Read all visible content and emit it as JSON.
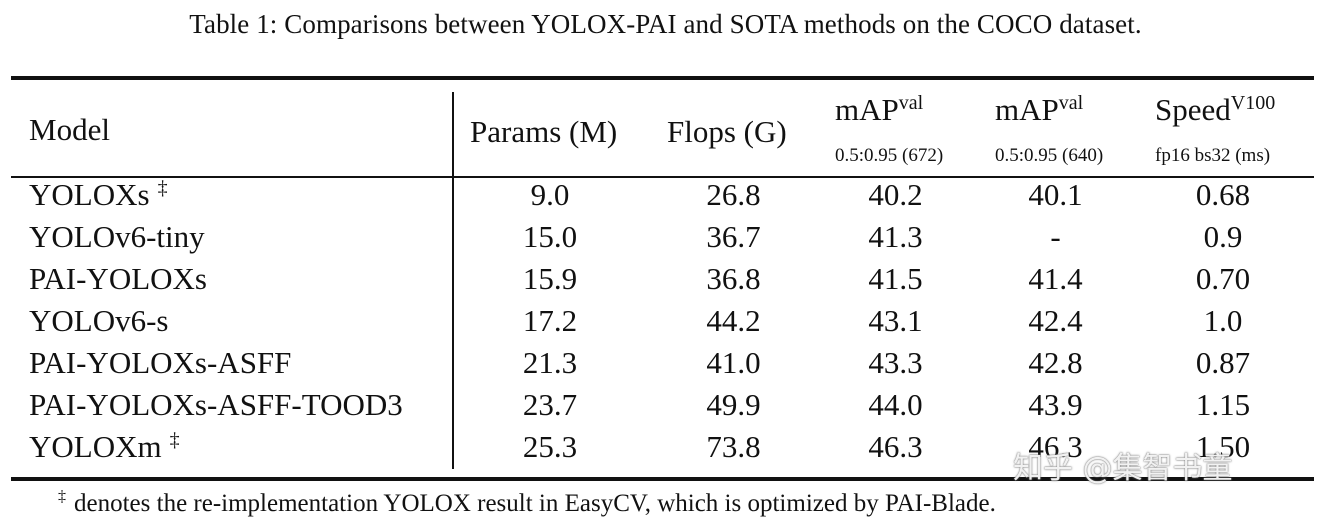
{
  "caption": "Table 1: Comparisons between YOLOX-PAI and SOTA methods on the COCO dataset.",
  "table": {
    "headers": {
      "model": "Model",
      "params": "Params (M)",
      "flops": "Flops (G)",
      "map672": {
        "main": "mAP",
        "sup": "val",
        "sub": "0.5:0.95 (672)"
      },
      "map640": {
        "main": "mAP",
        "sup": "val",
        "sub": "0.5:0.95 (640)"
      },
      "speed": {
        "main": "Speed",
        "sup": "V100",
        "sub": "fp16 bs32 (ms)"
      }
    },
    "rows": [
      {
        "model": "YOLOXs",
        "dagger": "‡",
        "params": "9.0",
        "flops": "26.8",
        "map672": "40.2",
        "map640": "40.1",
        "speed": "0.68"
      },
      {
        "model": "YOLOv6-tiny",
        "dagger": "",
        "params": "15.0",
        "flops": "36.7",
        "map672": "41.3",
        "map640": "-",
        "speed": "0.9"
      },
      {
        "model": "PAI-YOLOXs",
        "dagger": "",
        "params": "15.9",
        "flops": "36.8",
        "map672": "41.5",
        "map640": "41.4",
        "speed": "0.70"
      },
      {
        "model": "YOLOv6-s",
        "dagger": "",
        "params": "17.2",
        "flops": "44.2",
        "map672": "43.1",
        "map640": "42.4",
        "speed": "1.0"
      },
      {
        "model": "PAI-YOLOXs-ASFF",
        "dagger": "",
        "params": "21.3",
        "flops": "41.0",
        "map672": "43.3",
        "map640": "42.8",
        "speed": "0.87"
      },
      {
        "model": "PAI-YOLOXs-ASFF-TOOD3",
        "dagger": "",
        "params": "23.7",
        "flops": "49.9",
        "map672": "44.0",
        "map640": "43.9",
        "speed": "1.15"
      },
      {
        "model": "YOLOXm",
        "dagger": "‡",
        "params": "25.3",
        "flops": "73.8",
        "map672": "46.3",
        "map640": "46.3",
        "speed": "1.50"
      }
    ]
  },
  "footnote": {
    "mark": "‡",
    "text": "denotes the re-implementation YOLOX result in EasyCV, which is optimized by PAI-Blade."
  },
  "watermark": "知乎 @集智书童"
}
